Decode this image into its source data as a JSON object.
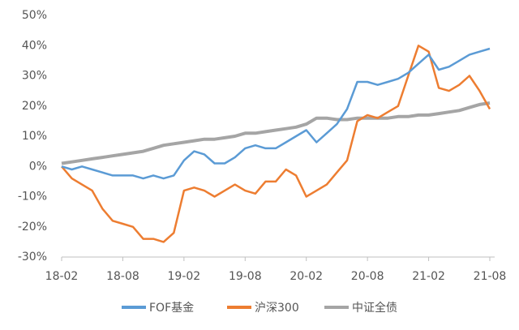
{
  "chart_data": {
    "type": "line",
    "x": [
      "18-02",
      null,
      null,
      null,
      null,
      null,
      "18-08",
      null,
      null,
      null,
      null,
      null,
      "19-02",
      null,
      null,
      null,
      null,
      null,
      "19-08",
      null,
      null,
      null,
      null,
      null,
      "20-02",
      null,
      null,
      null,
      null,
      null,
      "20-08",
      null,
      null,
      null,
      null,
      null,
      "21-02",
      null,
      null,
      null,
      null,
      null,
      "21-08"
    ],
    "series": [
      {
        "name": "FOF基金",
        "color": "#5b9bd5",
        "values": [
          0,
          -1,
          0,
          -1,
          -2,
          -3,
          -3,
          -3,
          -4,
          -3,
          -4,
          -3,
          2,
          5,
          4,
          1,
          1,
          3,
          6,
          7,
          6,
          6,
          8,
          10,
          12,
          8,
          11,
          14,
          19,
          28,
          28,
          27,
          28,
          29,
          31,
          34,
          37,
          32,
          33,
          35,
          37,
          38,
          39
        ]
      },
      {
        "name": "沪深300",
        "color": "#ed7d31",
        "values": [
          0,
          -4,
          -6,
          -8,
          -14,
          -18,
          -19,
          -20,
          -24,
          -24,
          -25,
          -22,
          -8,
          -7,
          -8,
          -10,
          -8,
          -6,
          -8,
          -9,
          -5,
          -5,
          -1,
          -3,
          -10,
          -8,
          -6,
          -2,
          2,
          15,
          17,
          16,
          18,
          20,
          30,
          40,
          38,
          26,
          25,
          27,
          30,
          25,
          19
        ]
      },
      {
        "name": "中证全债",
        "color": "#a5a5a5",
        "values": [
          1,
          1.5,
          2,
          2.5,
          3,
          3.5,
          4,
          4.5,
          5,
          6,
          7,
          7.5,
          8,
          8.5,
          9,
          9,
          9.5,
          10,
          11,
          11,
          11.5,
          12,
          12.5,
          13,
          14,
          16,
          16,
          15.5,
          15.5,
          16,
          16,
          16,
          16,
          16.5,
          16.5,
          17,
          17,
          17.5,
          18,
          18.5,
          19.5,
          20.5,
          21
        ]
      }
    ],
    "ylim": [
      -30,
      50
    ],
    "yticks": [
      {
        "value": -30,
        "label": "-30%"
      },
      {
        "value": -20,
        "label": "-20%"
      },
      {
        "value": -10,
        "label": "-10%"
      },
      {
        "value": 0,
        "label": "0%"
      },
      {
        "value": 10,
        "label": "10%"
      },
      {
        "value": 20,
        "label": "20%"
      },
      {
        "value": 30,
        "label": "30%"
      },
      {
        "value": 40,
        "label": "40%"
      },
      {
        "value": 50,
        "label": "50%"
      }
    ],
    "legend": "bottom"
  }
}
